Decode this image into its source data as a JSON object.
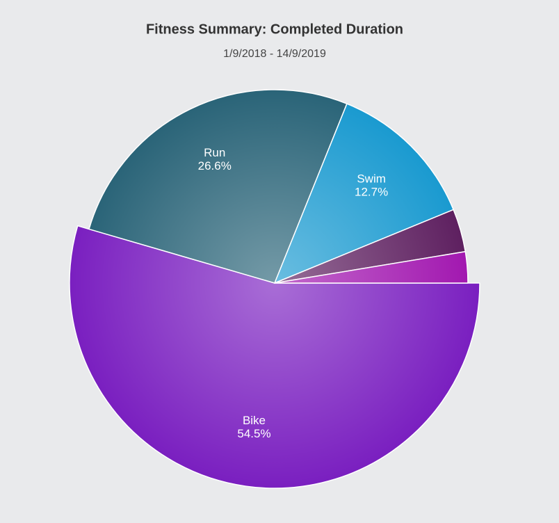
{
  "chart_data": {
    "type": "pie",
    "title": "Fitness Summary: Completed Duration",
    "subtitle": "1/9/2018 - 14/9/2019",
    "categories": [
      "Bike",
      "Run",
      "Swim",
      null,
      null
    ],
    "values": [
      54.5,
      26.6,
      12.7,
      3.6,
      2.6
    ],
    "value_labels": [
      "54.5%",
      "26.6%",
      "12.7%",
      null,
      null
    ],
    "colors": [
      "#7a1fc0",
      "#2a6478",
      "#1a9ad0",
      "#5e2060",
      "#a218b0"
    ],
    "exploded": [
      true,
      false,
      false,
      false,
      false
    ]
  }
}
